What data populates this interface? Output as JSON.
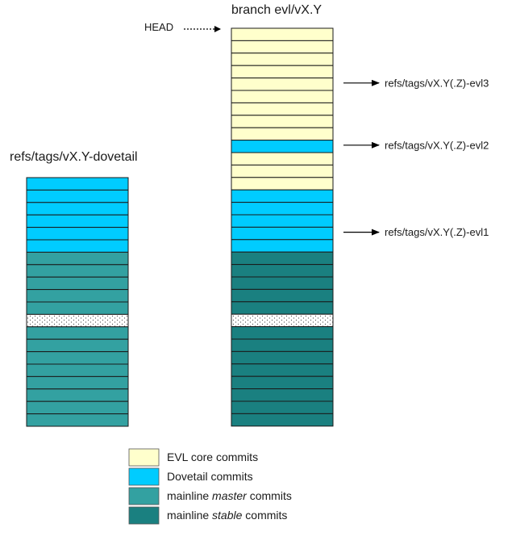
{
  "colors": {
    "evl_core": "#ffffcc",
    "dovetail": "#00ccff",
    "master": "#33a1a1",
    "stable": "#1a8080",
    "dotted_fill": "#ffffff",
    "stroke": "#1a1a1a"
  },
  "left_stack": {
    "title": "refs/tags/vX.Y-dovetail",
    "commits": [
      "dovetail",
      "dovetail",
      "dovetail",
      "dovetail",
      "dovetail",
      "dovetail",
      "master",
      "master",
      "master",
      "master",
      "master",
      "dotted",
      "master",
      "master",
      "master",
      "master",
      "master",
      "master",
      "master",
      "master"
    ]
  },
  "right_stack": {
    "title": "branch evl/vX.Y",
    "head_label": "HEAD",
    "commits": [
      "evl_core",
      "evl_core",
      "evl_core",
      "evl_core",
      "evl_core",
      "evl_core",
      "evl_core",
      "evl_core",
      "evl_core",
      "dovetail",
      "evl_core",
      "evl_core",
      "evl_core",
      "dovetail",
      "dovetail",
      "dovetail",
      "dovetail",
      "dovetail",
      "stable",
      "stable",
      "stable",
      "stable",
      "stable",
      "dotted",
      "stable",
      "stable",
      "stable",
      "stable",
      "stable",
      "stable",
      "stable",
      "stable"
    ]
  },
  "tags": [
    {
      "label": "refs/tags/vX.Y(.Z)-evl3",
      "at_index": 4
    },
    {
      "label": "refs/tags/vX.Y(.Z)-evl2",
      "at_index": 9
    },
    {
      "label": "refs/tags/vX.Y(.Z)-evl1",
      "at_index": 16
    }
  ],
  "legend": [
    {
      "key": "evl_core",
      "prefix": "EVL core commits",
      "emphasis": "",
      "suffix": ""
    },
    {
      "key": "dovetail",
      "prefix": "Dovetail commits",
      "emphasis": "",
      "suffix": ""
    },
    {
      "key": "master",
      "prefix": "mainline ",
      "emphasis": "master",
      "suffix": " commits"
    },
    {
      "key": "stable",
      "prefix": "mainline ",
      "emphasis": "stable",
      "suffix": " commits"
    }
  ]
}
